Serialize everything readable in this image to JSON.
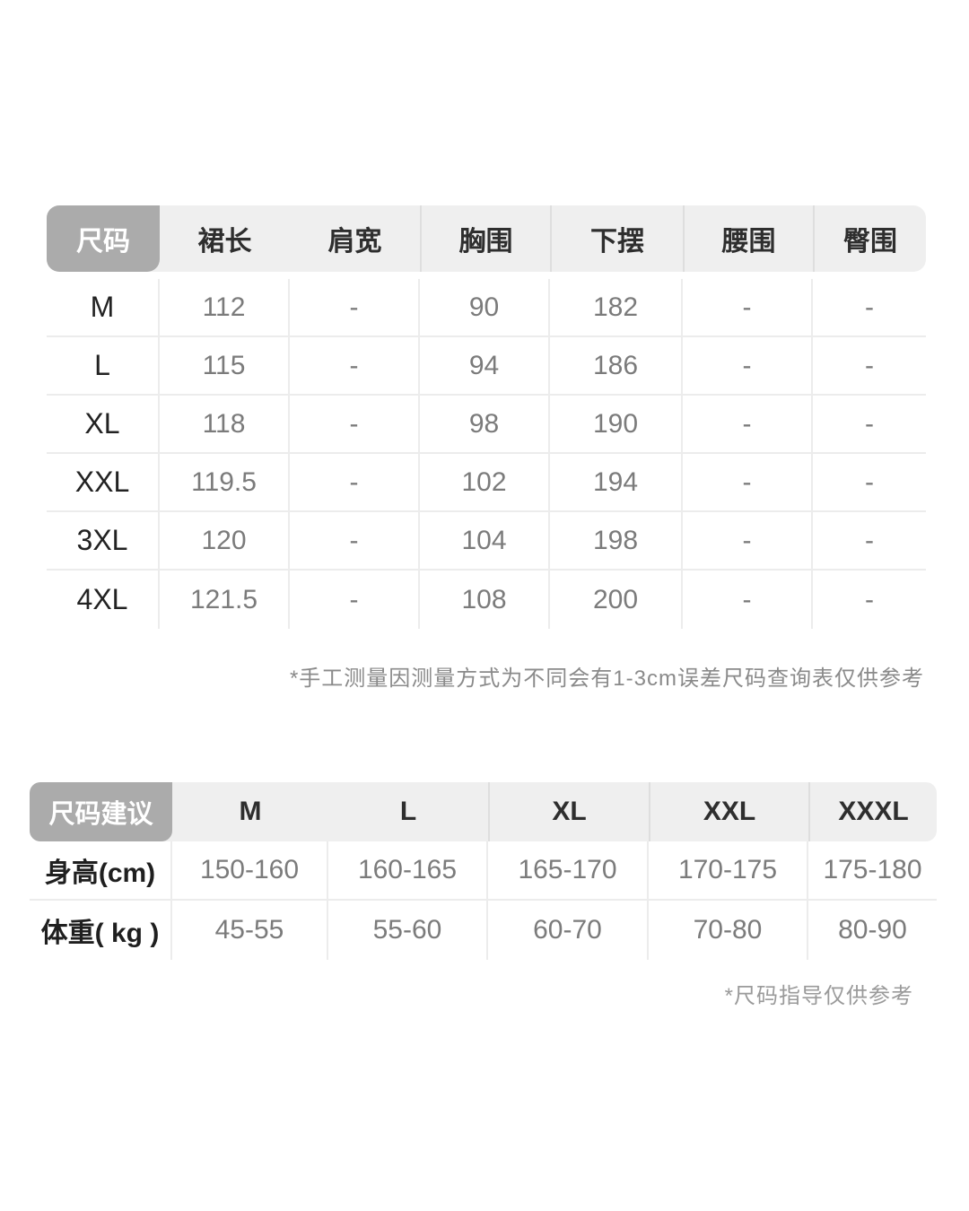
{
  "size_table": {
    "headers": [
      "尺码",
      "裙长",
      "肩宽",
      "胸围",
      "下摆",
      "腰围",
      "臀围"
    ],
    "rows": [
      {
        "size": "M",
        "values": [
          "112",
          "-",
          "90",
          "182",
          "-",
          "-"
        ]
      },
      {
        "size": "L",
        "values": [
          "115",
          "-",
          "94",
          "186",
          "-",
          "-"
        ]
      },
      {
        "size": "XL",
        "values": [
          "118",
          "-",
          "98",
          "190",
          "-",
          "-"
        ]
      },
      {
        "size": "XXL",
        "values": [
          "119.5",
          "-",
          "102",
          "194",
          "-",
          "-"
        ]
      },
      {
        "size": "3XL",
        "values": [
          "120",
          "-",
          "104",
          "198",
          "-",
          "-"
        ]
      },
      {
        "size": "4XL",
        "values": [
          "121.5",
          "-",
          "108",
          "200",
          "-",
          "-"
        ]
      }
    ],
    "note": "*手工测量因测量方式为不同会有1-3cm误差尺码查询表仅供参考"
  },
  "recommendation_table": {
    "corner_label": "尺码建议",
    "columns": [
      "M",
      "L",
      "XL",
      "XXL",
      "XXXL"
    ],
    "rows": [
      {
        "label": "身高(cm)",
        "values": [
          "150-160",
          "160-165",
          "165-170",
          "170-175",
          "175-180"
        ]
      },
      {
        "label": "体重( kg )",
        "values": [
          "45-55",
          "55-60",
          "60-70",
          "70-80",
          "80-90"
        ]
      }
    ],
    "note": "*尺码指导仅供参考"
  },
  "colors": {
    "corner_bg": "#ababab",
    "header_bg": "#efefef",
    "header_text": "#2e2e2e",
    "corner_text": "#ffffff",
    "size_text": "#222222",
    "value_text": "#7b7b7b",
    "divider": "#ececec",
    "note_text": "#8a8a8a",
    "page_bg": "#ffffff"
  }
}
